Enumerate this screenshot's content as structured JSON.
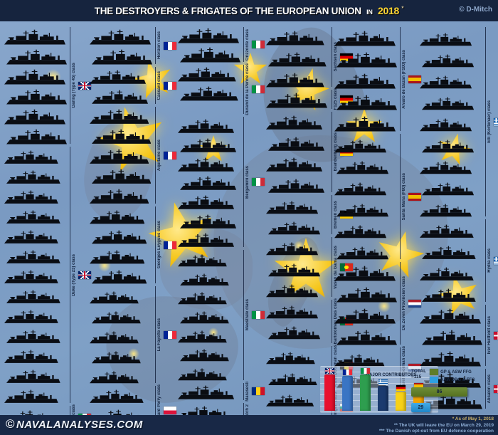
{
  "header": {
    "title_main": "THE DESTROYERS & FRIGATES OF THE EUROPEAN UNION",
    "title_in": "IN",
    "title_year": "2018",
    "title_note": "*",
    "credit": "© D-Mitch"
  },
  "footer": {
    "watermark_symbol": "©",
    "watermark": "NAVALANALYSES.COM",
    "notes": [
      "* As of May 1, 2018",
      "** The UK will leave the EU on March 29, 2019",
      "*** The Danish opt-out from EU defence cooperation"
    ]
  },
  "columns": [
    {
      "classes": [
        {
          "name": "Daring (Type 45) class",
          "country": "United Kingdom",
          "flag": "uk",
          "count": 6,
          "size": 1.0
        },
        {
          "name": "Duke (Type 23) class",
          "country": "United Kingdom",
          "flag": "uk",
          "count": 13,
          "size": 0.88
        },
        {
          "name": "Soldati class",
          "country": "Italy",
          "flag": "it",
          "count": 1,
          "size": 0.85
        }
      ]
    },
    {
      "classes": [
        {
          "name": "Horizon class",
          "country": "France",
          "flag": "fr",
          "count": 2,
          "size": 1.0
        },
        {
          "name": "Cassard class",
          "country": "France",
          "flag": "fr",
          "count": 2,
          "size": 0.92
        },
        {
          "name": "Aquitaine class",
          "country": "France",
          "flag": "fr",
          "count": 5,
          "size": 0.97
        },
        {
          "name": "Georges Leygues class",
          "country": "France",
          "flag": "fr",
          "count": 4,
          "size": 0.9
        },
        {
          "name": "La Fayette class",
          "country": "France",
          "flag": "fr",
          "count": 5,
          "size": 0.8
        },
        {
          "name": "Oliver Hazard Perry class",
          "country": "Poland",
          "flag": "pl",
          "count": 2,
          "size": 0.88
        }
      ]
    },
    {
      "classes": [
        {
          "name": "Orizzonte class",
          "country": "Italy",
          "flag": "it",
          "count": 2,
          "size": 1.0
        },
        {
          "name": "Durand de la Penne class",
          "country": "Italy",
          "flag": "it",
          "count": 2,
          "size": 0.95
        },
        {
          "name": "Bergamini class",
          "country": "Italy",
          "flag": "it",
          "count": 7,
          "size": 0.92
        },
        {
          "name": "Maestrale class",
          "country": "Italy",
          "flag": "it",
          "count": 7,
          "size": 0.8
        },
        {
          "name": "Marasesti",
          "country": "Romania",
          "flag": "ro",
          "count": 1,
          "size": 0.92
        },
        {
          "name": "Type 22 Batch 2",
          "country": "Romania",
          "flag": "ro",
          "count": 2,
          "size": 0.88
        }
      ]
    },
    {
      "classes": [
        {
          "name": "Sachsen class",
          "country": "Germany",
          "flag": "de",
          "count": 3,
          "size": 0.95
        },
        {
          "name": "F125 class",
          "country": "Germany",
          "flag": "de",
          "count": 1,
          "size": 1.0
        },
        {
          "name": "Brandenburg class",
          "country": "Germany",
          "flag": "de",
          "count": 4,
          "size": 0.92
        },
        {
          "name": "Bremen class",
          "country": "Germany",
          "flag": "de",
          "count": 2,
          "size": 0.85
        },
        {
          "name": "Vasco da Gama class",
          "country": "Portugal",
          "flag": "pt",
          "count": 3,
          "size": 0.85
        },
        {
          "name": "Bartolomeu Dias class",
          "country": "Portugal",
          "flag": "pt",
          "count": 2,
          "size": 0.85
        },
        {
          "name": "Karel Doorman class",
          "country": "Belgium",
          "flag": "be",
          "count": 2,
          "size": 0.8
        },
        {
          "name": "Wielingen class",
          "country": "Bulgaria",
          "flag": "bg",
          "count": 2,
          "size": 0.78
        }
      ]
    },
    {
      "classes": [
        {
          "name": "Alvaro de Bazan (F100) class",
          "country": "Spain",
          "flag": "es",
          "count": 5,
          "size": 1.0
        },
        {
          "name": "Santa Maria (F80) class",
          "country": "Spain",
          "flag": "es",
          "count": 6,
          "size": 0.85
        },
        {
          "name": "De Zeven Provincien class",
          "country": "Netherlands",
          "flag": "nl",
          "count": 4,
          "size": 1.0
        },
        {
          "name": "Karel Doorman class",
          "country": "Netherlands",
          "flag": "nl",
          "count": 2,
          "size": 0.82
        }
      ]
    },
    {
      "classes": [
        {
          "name": "Elli (Kortenaer) class",
          "country": "Greece",
          "flag": "gr",
          "count": 9,
          "size": 0.85
        },
        {
          "name": "Hydra class",
          "country": "Greece",
          "flag": "gr",
          "count": 4,
          "size": 0.88
        },
        {
          "name": "Iver Huitfeldt class",
          "country": "Denmark",
          "flag": "dk",
          "count": 3,
          "size": 1.0,
          "note": "***"
        },
        {
          "name": "Absalon class",
          "country": "Denmark",
          "flag": "dk",
          "count": 2,
          "size": 1.0,
          "note": "***"
        }
      ]
    }
  ],
  "chart_data": {
    "type": "bar",
    "title": "MAJOR CONTRIBUTORS",
    "categories": [
      "United Kingdom",
      "France",
      "Italy",
      "Greece",
      "Germany",
      "Spain"
    ],
    "values": [
      19,
      18,
      19,
      13,
      10,
      11
    ],
    "flags": [
      "uk",
      "fr",
      "it",
      "gr",
      "de",
      "es"
    ],
    "bar_colors": [
      "#e8112d",
      "#3a75c4",
      "#2e9e4f",
      "#1b3b6f",
      "#f7d117",
      "#f0a202"
    ],
    "ylim": [
      0,
      20
    ],
    "grid": true,
    "legend_position": "right",
    "totals": {
      "label": "TOTAL",
      "value": "=115",
      "breakdown": [
        {
          "label": "GP & ASW FFG",
          "value": 86,
          "color": "#5f7d2a"
        },
        {
          "label": "AAW DDG & FFG",
          "value": 29,
          "color": "#2f9fe0"
        }
      ]
    }
  },
  "colors": {
    "header_bar": "#16243e",
    "footer_bar": "#182846",
    "sea": "#7a9ac2",
    "star_gold": "#f5c518",
    "year_accent": "#ffd633",
    "ship_silhouette": "#0a0d13"
  },
  "background_motif": "Map of Europe with EU flag gold stars"
}
